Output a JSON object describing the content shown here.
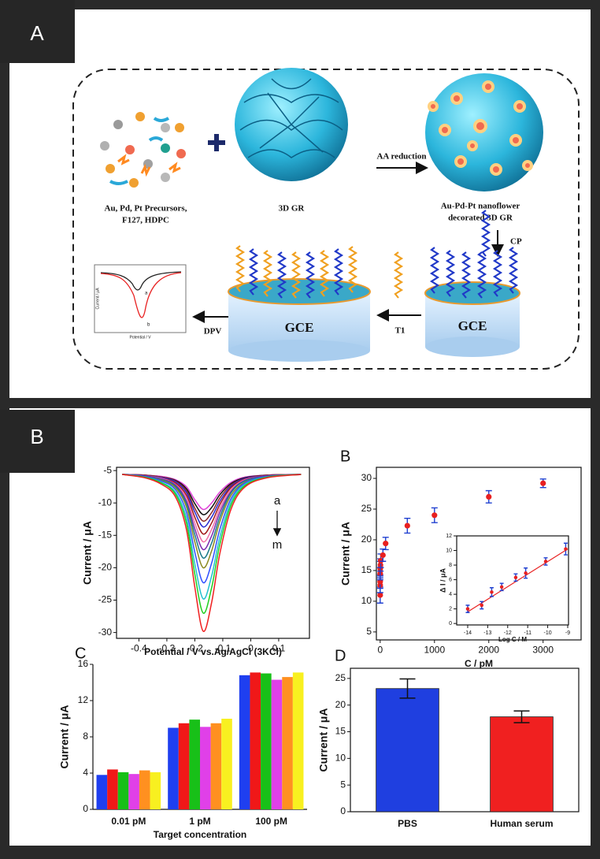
{
  "panel_labels": [
    "A",
    "B"
  ],
  "scheme": {
    "precursors": [
      "Au, Pd, Pt Precursors,",
      "F127, HDPC"
    ],
    "graphene": "3D GR",
    "reduction": "AA reduction",
    "nanoflower": [
      "Au-Pd-Pt nanoflower",
      "decorated 3D GR"
    ],
    "capture_probe": "CP",
    "target": "T1",
    "detection": "DPV",
    "electrode": [
      "GCE",
      "GCE"
    ],
    "inset": {
      "y_label": "Current / μA",
      "x_label": "Potential / V",
      "curves": [
        "a",
        "b"
      ]
    }
  },
  "chart_data": [
    {
      "type": "line",
      "x_label": "Potential / V vs.Ag/AgCl (3KCl)",
      "y_label": "Current / μA",
      "annotations": [
        "a",
        "m"
      ],
      "x": [
        -0.46,
        -0.38,
        -0.32,
        -0.27,
        -0.23,
        -0.2,
        -0.17,
        -0.14,
        -0.11,
        -0.07,
        -0.02,
        0.06,
        0.18
      ],
      "series": [
        {
          "color": "#e040d8",
          "values": [
            -5.6,
            -5.7,
            -5.9,
            -6.4,
            -7.5,
            -9.5,
            -11,
            -10.0,
            -8.3,
            -6.8,
            -6.0,
            -5.7,
            -5.6
          ]
        },
        {
          "color": "#111111",
          "values": [
            -5.6,
            -5.7,
            -6.0,
            -6.5,
            -7.8,
            -10.1,
            -11.8,
            -10.7,
            -8.7,
            -7.0,
            -6.1,
            -5.7,
            -5.6
          ]
        },
        {
          "color": "#8b2a2a",
          "values": [
            -5.6,
            -5.7,
            -6.0,
            -6.6,
            -8.1,
            -10.8,
            -12.8,
            -11.5,
            -9.2,
            -7.2,
            -6.2,
            -5.7,
            -5.6
          ]
        },
        {
          "color": "#2a2ad0",
          "values": [
            -5.6,
            -5.8,
            -6.1,
            -6.7,
            -8.4,
            -11.4,
            -13.7,
            -12.2,
            -9.7,
            -7.4,
            -6.2,
            -5.8,
            -5.6
          ]
        },
        {
          "color": "#a01818",
          "values": [
            -5.6,
            -5.8,
            -6.2,
            -6.9,
            -8.8,
            -12.2,
            -14.8,
            -13.1,
            -10.2,
            -7.6,
            -6.3,
            -5.8,
            -5.6
          ]
        },
        {
          "color": "#f070a8",
          "values": [
            -5.6,
            -5.8,
            -6.2,
            -7.1,
            -9.2,
            -13.1,
            -16,
            -14.1,
            -10.8,
            -7.9,
            -6.4,
            -5.8,
            -5.6
          ]
        },
        {
          "color": "#7a2ab0",
          "values": [
            -5.6,
            -5.8,
            -6.3,
            -7.2,
            -9.7,
            -14.0,
            -17.2,
            -15.1,
            -11.4,
            -8.2,
            -6.5,
            -5.8,
            -5.6
          ]
        },
        {
          "color": "#1a7a8a",
          "values": [
            -5.6,
            -5.9,
            -6.4,
            -7.4,
            -10.1,
            -14.9,
            -18.5,
            -16.2,
            -12.1,
            -8.4,
            -6.6,
            -5.9,
            -5.6
          ]
        },
        {
          "color": "#8a8a20",
          "values": [
            -5.6,
            -5.9,
            -6.5,
            -7.6,
            -10.6,
            -16.0,
            -20,
            -17.4,
            -12.8,
            -8.8,
            -6.8,
            -5.9,
            -5.6
          ]
        },
        {
          "color": "#3050ff",
          "values": [
            -5.6,
            -5.9,
            -6.6,
            -7.9,
            -11.4,
            -17.6,
            -22.3,
            -19.3,
            -14.0,
            -9.3,
            -6.9,
            -5.9,
            -5.6
          ]
        },
        {
          "color": "#20c0d0",
          "values": [
            -5.6,
            -6.0,
            -6.8,
            -8.3,
            -12.3,
            -19.4,
            -24.8,
            -21.3,
            -15.2,
            -9.8,
            -7.1,
            -6.0,
            -5.6
          ]
        },
        {
          "color": "#20d020",
          "values": [
            -5.6,
            -6.0,
            -6.9,
            -8.6,
            -13.1,
            -21.0,
            -27,
            -23.1,
            -16.3,
            -10.3,
            -7.3,
            -6.0,
            -5.6
          ]
        },
        {
          "color": "#f02020",
          "values": [
            -5.6,
            -6.1,
            -7.1,
            -9.0,
            -14.1,
            -23.0,
            -29.8,
            -25.4,
            -17.7,
            -10.9,
            -7.5,
            -6.1,
            -5.6
          ]
        }
      ],
      "xlim": [
        -0.48,
        0.21
      ],
      "xticks": [
        -0.4,
        -0.3,
        -0.2,
        -0.1,
        0,
        0.1
      ],
      "ylim": [
        -30.9,
        -4.5
      ],
      "yticks": [
        -30,
        -25,
        -20,
        -15,
        -10,
        -5
      ]
    },
    {
      "type": "scatter",
      "panel_label": "B",
      "x_label": "C / pM",
      "y_label": "Current / μA",
      "x": [
        0.01,
        0.05,
        0.1,
        0.5,
        1,
        5,
        10,
        50,
        100,
        500,
        1000,
        2000,
        3000
      ],
      "values": [
        11,
        12.6,
        13.2,
        14.5,
        15.3,
        15.9,
        16.6,
        17.5,
        19.4,
        22.3,
        24,
        27,
        29.2
      ],
      "errors": [
        1.3,
        1.2,
        1.1,
        1.0,
        1.2,
        1.0,
        1.1,
        1.0,
        1.0,
        1.2,
        1.2,
        1.0,
        0.7
      ],
      "color": "#e82020",
      "error_color": "#2040d0",
      "xlim": [
        -70,
        3700
      ],
      "xticks": [
        0,
        1000,
        2000,
        3000
      ],
      "ylim": [
        3.7,
        31.8
      ],
      "yticks": [
        5,
        10,
        15,
        20,
        25,
        30
      ],
      "inset": {
        "x_label": "Log C / M",
        "y_label": "Δ I / μA",
        "x": [
          -14,
          -13.3,
          -12.8,
          -12.3,
          -11.6,
          -11.1,
          -10.1,
          -9.1
        ],
        "values": [
          2.0,
          2.5,
          4.3,
          5.0,
          6.3,
          6.9,
          8.5,
          10.2
        ],
        "errors": [
          0.5,
          0.5,
          0.6,
          0.5,
          0.5,
          0.7,
          0.5,
          0.8
        ],
        "xlim": [
          -14.55,
          -8.96
        ],
        "xticks": [
          -14,
          -13,
          -12,
          -11,
          -10,
          -9
        ],
        "ylim": [
          -0.2,
          12
        ],
        "yticks": [
          0,
          2,
          4,
          6,
          8,
          10,
          12
        ],
        "fit": {
          "color": "#e82020",
          "x": [
            -14,
            -9
          ],
          "values": [
            1.6,
            10.2
          ]
        }
      }
    },
    {
      "type": "bar",
      "panel_label": "C",
      "x_label": "Target concentration",
      "y_label": "Current / μA",
      "categories": [
        "0.01 pM",
        "1 pM",
        "100 pM"
      ],
      "series": [
        {
          "color": "#1f3ff0",
          "values": [
            3.8,
            9.0,
            14.8
          ]
        },
        {
          "color": "#f01818",
          "values": [
            4.4,
            9.5,
            15.1
          ]
        },
        {
          "color": "#18c018",
          "values": [
            4.1,
            9.9,
            15.0
          ]
        },
        {
          "color": "#e040e8",
          "values": [
            3.9,
            9.1,
            14.3
          ]
        },
        {
          "color": "#ff9020",
          "values": [
            4.3,
            9.5,
            14.6
          ]
        },
        {
          "color": "#f8f020",
          "values": [
            4.1,
            10.0,
            15.1
          ]
        }
      ],
      "ylim": [
        0,
        16
      ],
      "yticks": [
        0,
        4,
        8,
        12,
        16
      ]
    },
    {
      "type": "bar",
      "panel_label": "D",
      "y_label": "Current / μA",
      "categories": [
        "PBS",
        "Human serum"
      ],
      "values": [
        23.1,
        17.8
      ],
      "errors": [
        1.8,
        1.1
      ],
      "colors": [
        "#1f3fe0",
        "#f02020"
      ],
      "ylim": [
        0,
        26.9
      ],
      "yticks": [
        0,
        5,
        10,
        15,
        20,
        25
      ]
    }
  ]
}
